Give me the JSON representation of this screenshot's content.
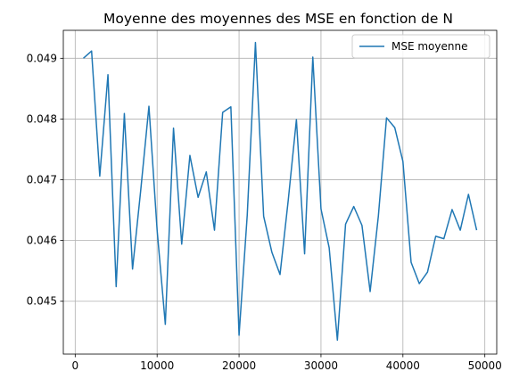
{
  "chart_data": {
    "type": "line",
    "title": "Moyenne des moyennes des MSE en fonction de N",
    "xlabel": "",
    "ylabel": "",
    "xlim": [
      -1450,
      51450
    ],
    "ylim": [
      0.04413,
      0.04946
    ],
    "xticks": [
      0,
      10000,
      20000,
      30000,
      40000,
      50000
    ],
    "xtick_labels": [
      "0",
      "10000",
      "20000",
      "30000",
      "40000",
      "50000"
    ],
    "yticks": [
      0.045,
      0.046,
      0.047,
      0.048,
      0.049
    ],
    "ytick_labels": [
      "0.045",
      "0.046",
      "0.047",
      "0.048",
      "0.049"
    ],
    "grid": true,
    "legend_position": "top-right",
    "series": [
      {
        "name": "MSE moyenne",
        "color": "#1f77b4",
        "x": [
          1000,
          2000,
          3000,
          4000,
          5000,
          6000,
          7000,
          8000,
          9000,
          10000,
          11000,
          12000,
          13000,
          14000,
          15000,
          16000,
          17000,
          18000,
          19000,
          20000,
          21000,
          22000,
          23000,
          24000,
          25000,
          26000,
          27000,
          28000,
          29000,
          30000,
          31000,
          32000,
          33000,
          34000,
          35000,
          36000,
          37000,
          38000,
          39000,
          40000,
          41000,
          42000,
          43000,
          44000,
          45000,
          46000,
          47000,
          48000,
          49000
        ],
        "values": [
          0.049,
          0.04912,
          0.04706,
          0.04873,
          0.04524,
          0.04809,
          0.04553,
          0.04683,
          0.04821,
          0.04617,
          0.04462,
          0.04785,
          0.04594,
          0.0474,
          0.04671,
          0.04713,
          0.04617,
          0.04811,
          0.0482,
          0.04444,
          0.04642,
          0.04926,
          0.0464,
          0.04581,
          0.04544,
          0.04666,
          0.04799,
          0.04578,
          0.04902,
          0.04652,
          0.04588,
          0.04436,
          0.04627,
          0.04656,
          0.04625,
          0.04516,
          0.0464,
          0.04802,
          0.04786,
          0.0473,
          0.04564,
          0.04529,
          0.04548,
          0.04607,
          0.04603,
          0.04651,
          0.04617,
          0.04676,
          0.04617
        ]
      }
    ]
  }
}
